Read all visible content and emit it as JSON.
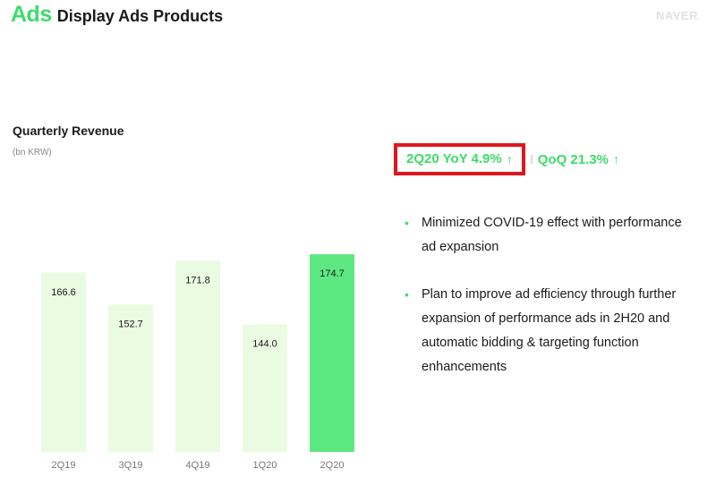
{
  "header": {
    "section": "Ads",
    "title": "Display Ads Products"
  },
  "brand": "NAVER",
  "chart_title": "Quarterly Revenue",
  "chart_unit": "(bn KRW)",
  "metrics": {
    "yoy_label": "2Q20 YoY 4.9%",
    "yoy_arrow": "↑",
    "qoq_label": "QoQ 21.3%",
    "qoq_arrow": "↑"
  },
  "bullets": [
    "Minimized COVID-19 effect with performance ad expansion",
    "Plan to improve ad efficiency through further expansion of performance ads in 2H20 and automatic bidding & targeting function enhancements"
  ],
  "bullet_symbol": "•",
  "colors": {
    "accent": "#3ddc6a",
    "bar_light": "#e9fbe0",
    "bar_highlight": "#5ee882",
    "highlight_box": "#e0161d"
  },
  "chart_data": {
    "type": "bar",
    "title": "Quarterly Revenue",
    "unit": "(bn KRW)",
    "categories": [
      "2Q19",
      "3Q19",
      "4Q19",
      "1Q20",
      "2Q20"
    ],
    "values": [
      166.6,
      152.7,
      171.8,
      144.0,
      174.7
    ],
    "value_labels": [
      "166.6",
      "152.7",
      "171.8",
      "144.0",
      "174.7"
    ],
    "highlight_index": 4,
    "ylim": [
      0,
      190
    ],
    "grid": false,
    "legend": "none"
  }
}
